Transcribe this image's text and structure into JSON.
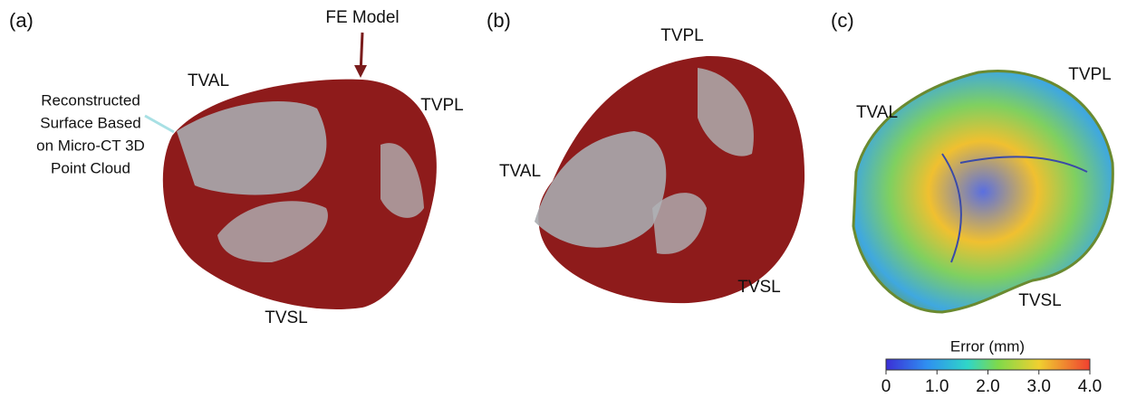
{
  "panels": [
    {
      "label": "(a)",
      "fe_model": "FE Model",
      "reconstructed": [
        "Reconstructed",
        "Surface Based",
        "on Micro-CT 3D",
        "Point Cloud"
      ],
      "leaflets": [
        "TVAL",
        "TVPL",
        "TVSL"
      ]
    },
    {
      "label": "(b)",
      "leaflets": [
        "TVPL",
        "TVAL",
        "TVSL"
      ]
    },
    {
      "label": "(c)",
      "leaflets": [
        "TVAL",
        "TVPL",
        "TVSL"
      ]
    }
  ],
  "colorbar": {
    "title": "Error (mm)",
    "lim": [
      0,
      4
    ],
    "ticks": [
      0,
      {
        "value": 1,
        "label": "1.0"
      },
      {
        "value": 2,
        "label": "2.0"
      },
      {
        "value": 3,
        "label": "3.0"
      },
      {
        "value": 4,
        "label": "4.0"
      }
    ]
  }
}
